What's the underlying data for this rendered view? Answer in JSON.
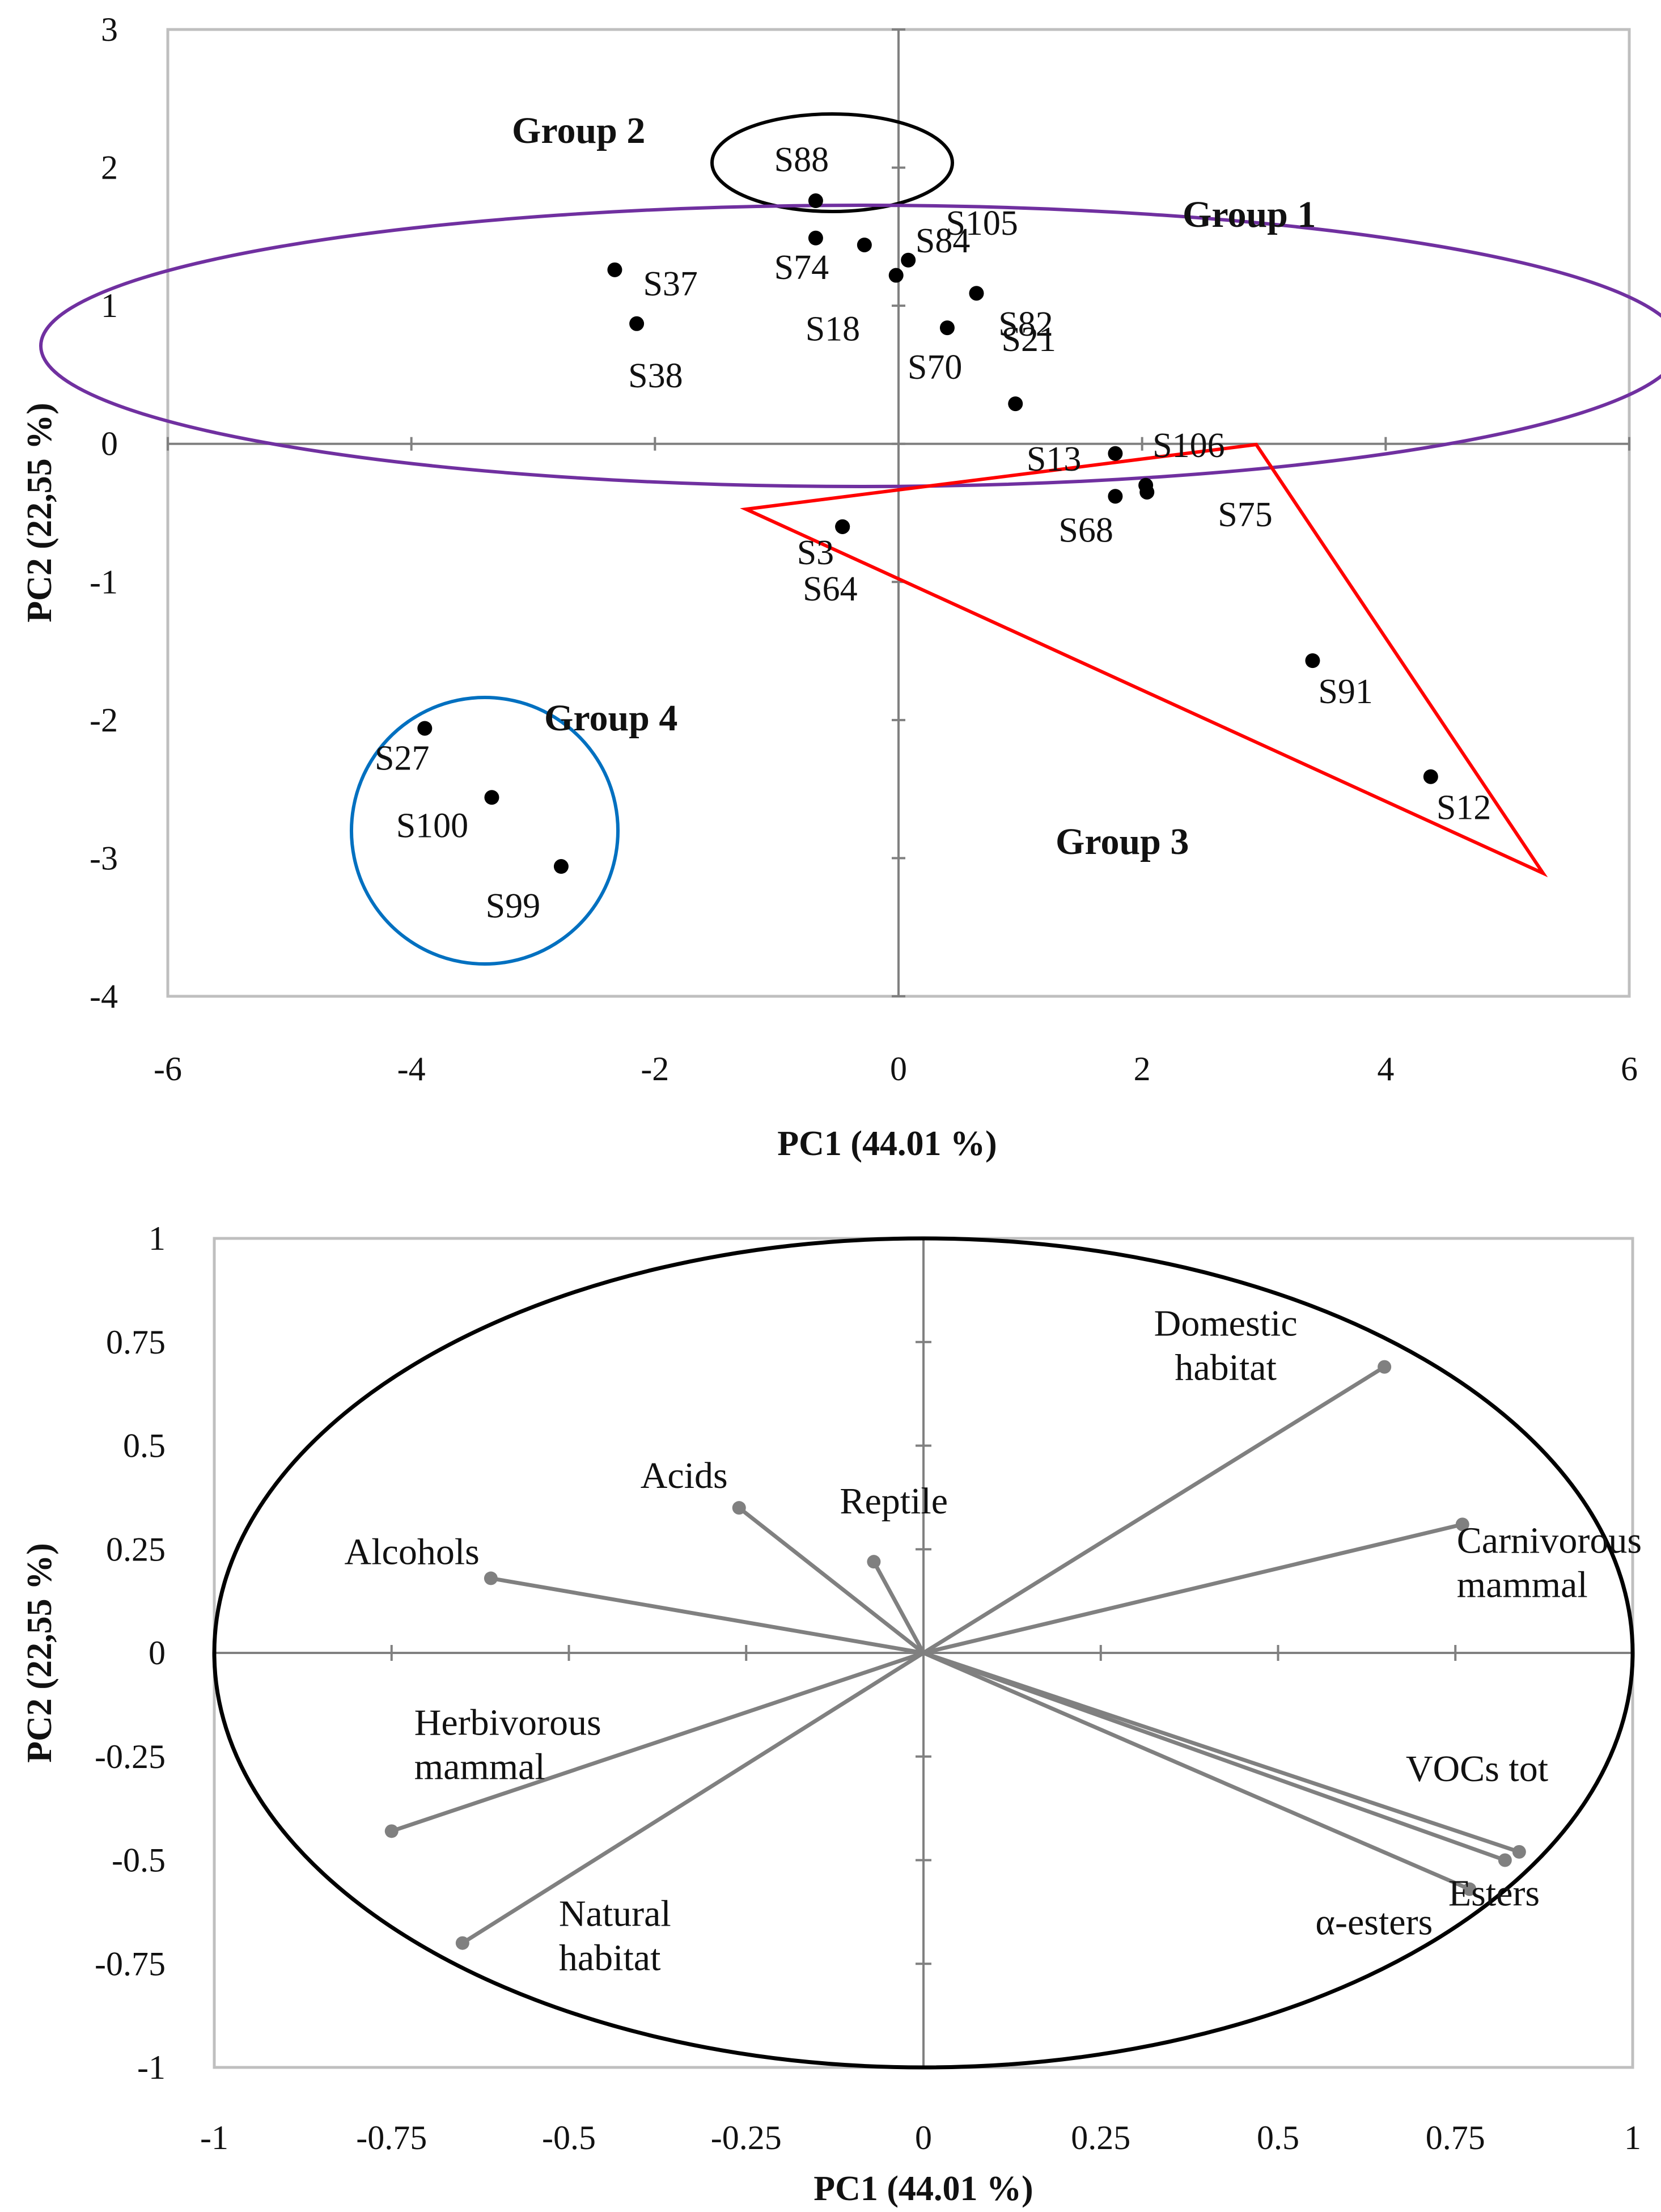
{
  "chart_data": [
    {
      "type": "scatter",
      "title": "",
      "xlabel": "PC1 (44.01 %)",
      "ylabel": "PC2 (22,55 %)",
      "xlim": [
        -6,
        6
      ],
      "ylim": [
        -4,
        3
      ],
      "xticks": [
        "-6",
        "-4",
        "-2",
        "0",
        "2",
        "4",
        "6"
      ],
      "yticks": [
        "3",
        "2",
        "1",
        "0",
        "-1",
        "-2",
        "-3",
        "-4"
      ],
      "grid": false,
      "points": [
        {
          "label": "S88",
          "x": -0.68,
          "y": 1.76
        },
        {
          "label": "S74",
          "x": -0.68,
          "y": 1.49
        },
        {
          "label": "S37",
          "x": -2.33,
          "y": 1.26
        },
        {
          "label": "S38",
          "x": -2.15,
          "y": 0.87
        },
        {
          "label": "S18",
          "x": -0.02,
          "y": 1.22
        },
        {
          "label": "S105",
          "x": 0.08,
          "y": 1.33
        },
        {
          "label": "S70",
          "x": 0.4,
          "y": 0.84
        },
        {
          "label": "S84",
          "x": -0.28,
          "y": 1.44
        },
        {
          "label": "S21",
          "x": 0.64,
          "y": 1.09
        },
        {
          "label": "S82",
          "x": 0.96,
          "y": 0.29
        },
        {
          "label": "S13",
          "x": 1.78,
          "y": -0.07
        },
        {
          "label": "S106",
          "x": 2.03,
          "y": -0.3
        },
        {
          "label": "S68",
          "x": 1.78,
          "y": -0.38
        },
        {
          "label": "S75",
          "x": 2.04,
          "y": -0.35
        },
        {
          "label": "S64",
          "x": -0.46,
          "y": -0.6
        },
        {
          "label": "S3",
          "x": -0.46,
          "y": -0.6
        },
        {
          "label": "S91",
          "x": 3.4,
          "y": -1.57
        },
        {
          "label": "S12",
          "x": 4.37,
          "y": -2.41
        },
        {
          "label": "S27",
          "x": -3.89,
          "y": -2.06
        },
        {
          "label": "S100",
          "x": -3.34,
          "y": -2.56
        },
        {
          "label": "S99",
          "x": -2.77,
          "y": -3.06
        }
      ],
      "groups": [
        {
          "name": "Group 1",
          "shape": "ellipse",
          "color": "#7030A0"
        },
        {
          "name": "Group 2",
          "shape": "ellipse",
          "color": "#000000"
        },
        {
          "name": "Group 3",
          "shape": "triangle",
          "color": "#FF0000"
        },
        {
          "name": "Group 4",
          "shape": "ellipse",
          "color": "#0070C0"
        }
      ]
    },
    {
      "type": "line",
      "subtype": "loading-plot",
      "title": "",
      "xlabel": "PC1 (44.01 %)",
      "ylabel": "PC2 (22,55 %)",
      "xlim": [
        -1,
        1
      ],
      "ylim": [
        -1,
        1
      ],
      "xticks": [
        "-1",
        "-0.75",
        "-0.5",
        "-0.25",
        "0",
        "0.25",
        "0.5",
        "0.75",
        "1"
      ],
      "yticks": [
        "1",
        "0.75",
        "0.5",
        "0.25",
        "0",
        "-0.25",
        "-0.5",
        "-0.75",
        "-1"
      ],
      "grid": false,
      "circle": "correlation circle (radius 1)",
      "vectors": [
        {
          "label": [
            "Domestic",
            "habitat"
          ],
          "x": 0.65,
          "y": 0.69
        },
        {
          "label": [
            "Carnivorous",
            "mammal"
          ],
          "x": 0.76,
          "y": 0.31
        },
        {
          "label": [
            "Acids"
          ],
          "x": -0.26,
          "y": 0.35
        },
        {
          "label": [
            "Reptile"
          ],
          "x": -0.07,
          "y": 0.22
        },
        {
          "label": [
            "Alcohols"
          ],
          "x": -0.61,
          "y": 0.18
        },
        {
          "label": [
            "Herbivorous",
            "mammal"
          ],
          "x": -0.75,
          "y": -0.43
        },
        {
          "label": [
            "Natural",
            "habitat"
          ],
          "x": -0.65,
          "y": -0.7
        },
        {
          "label": [
            "VOCs tot"
          ],
          "x": 0.84,
          "y": -0.48
        },
        {
          "label": [
            "Esters"
          ],
          "x": 0.82,
          "y": -0.5
        },
        {
          "label": [
            "α-esters"
          ],
          "x": 0.77,
          "y": -0.57
        }
      ],
      "vector_color": "#808080"
    }
  ]
}
